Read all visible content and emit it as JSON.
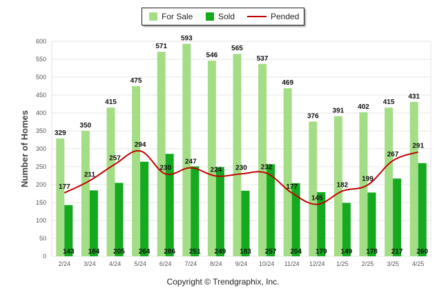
{
  "chart_data": {
    "type": "bar",
    "ylabel": "Number of Homes",
    "ylim": [
      0,
      600
    ],
    "yticks": [
      0,
      50,
      100,
      150,
      200,
      250,
      300,
      350,
      400,
      450,
      500,
      550,
      600
    ],
    "categories": [
      "2/24",
      "3/24",
      "4/24",
      "5/24",
      "6/24",
      "7/24",
      "8/24",
      "9/24",
      "10/24",
      "11/24",
      "12/24",
      "1/25",
      "2/25",
      "3/25",
      "4/25"
    ],
    "series": [
      {
        "name": "For Sale",
        "kind": "bar",
        "color": "#a3de86",
        "values": [
          329,
          350,
          415,
          475,
          571,
          593,
          546,
          565,
          537,
          469,
          376,
          391,
          402,
          415,
          431
        ]
      },
      {
        "name": "Sold",
        "kind": "bar",
        "color": "#14a91f",
        "values": [
          143,
          184,
          205,
          264,
          286,
          251,
          249,
          183,
          257,
          204,
          179,
          149,
          178,
          217,
          260
        ]
      },
      {
        "name": "Pended",
        "kind": "line",
        "color": "#c00000",
        "values": [
          177,
          211,
          257,
          294,
          230,
          247,
          224,
          230,
          232,
          177,
          145,
          182,
          199,
          267,
          291
        ]
      }
    ],
    "legend_position": "top-center",
    "grid": true
  },
  "footer": {
    "copyright": "Copyright © Trendgraphix, Inc."
  }
}
